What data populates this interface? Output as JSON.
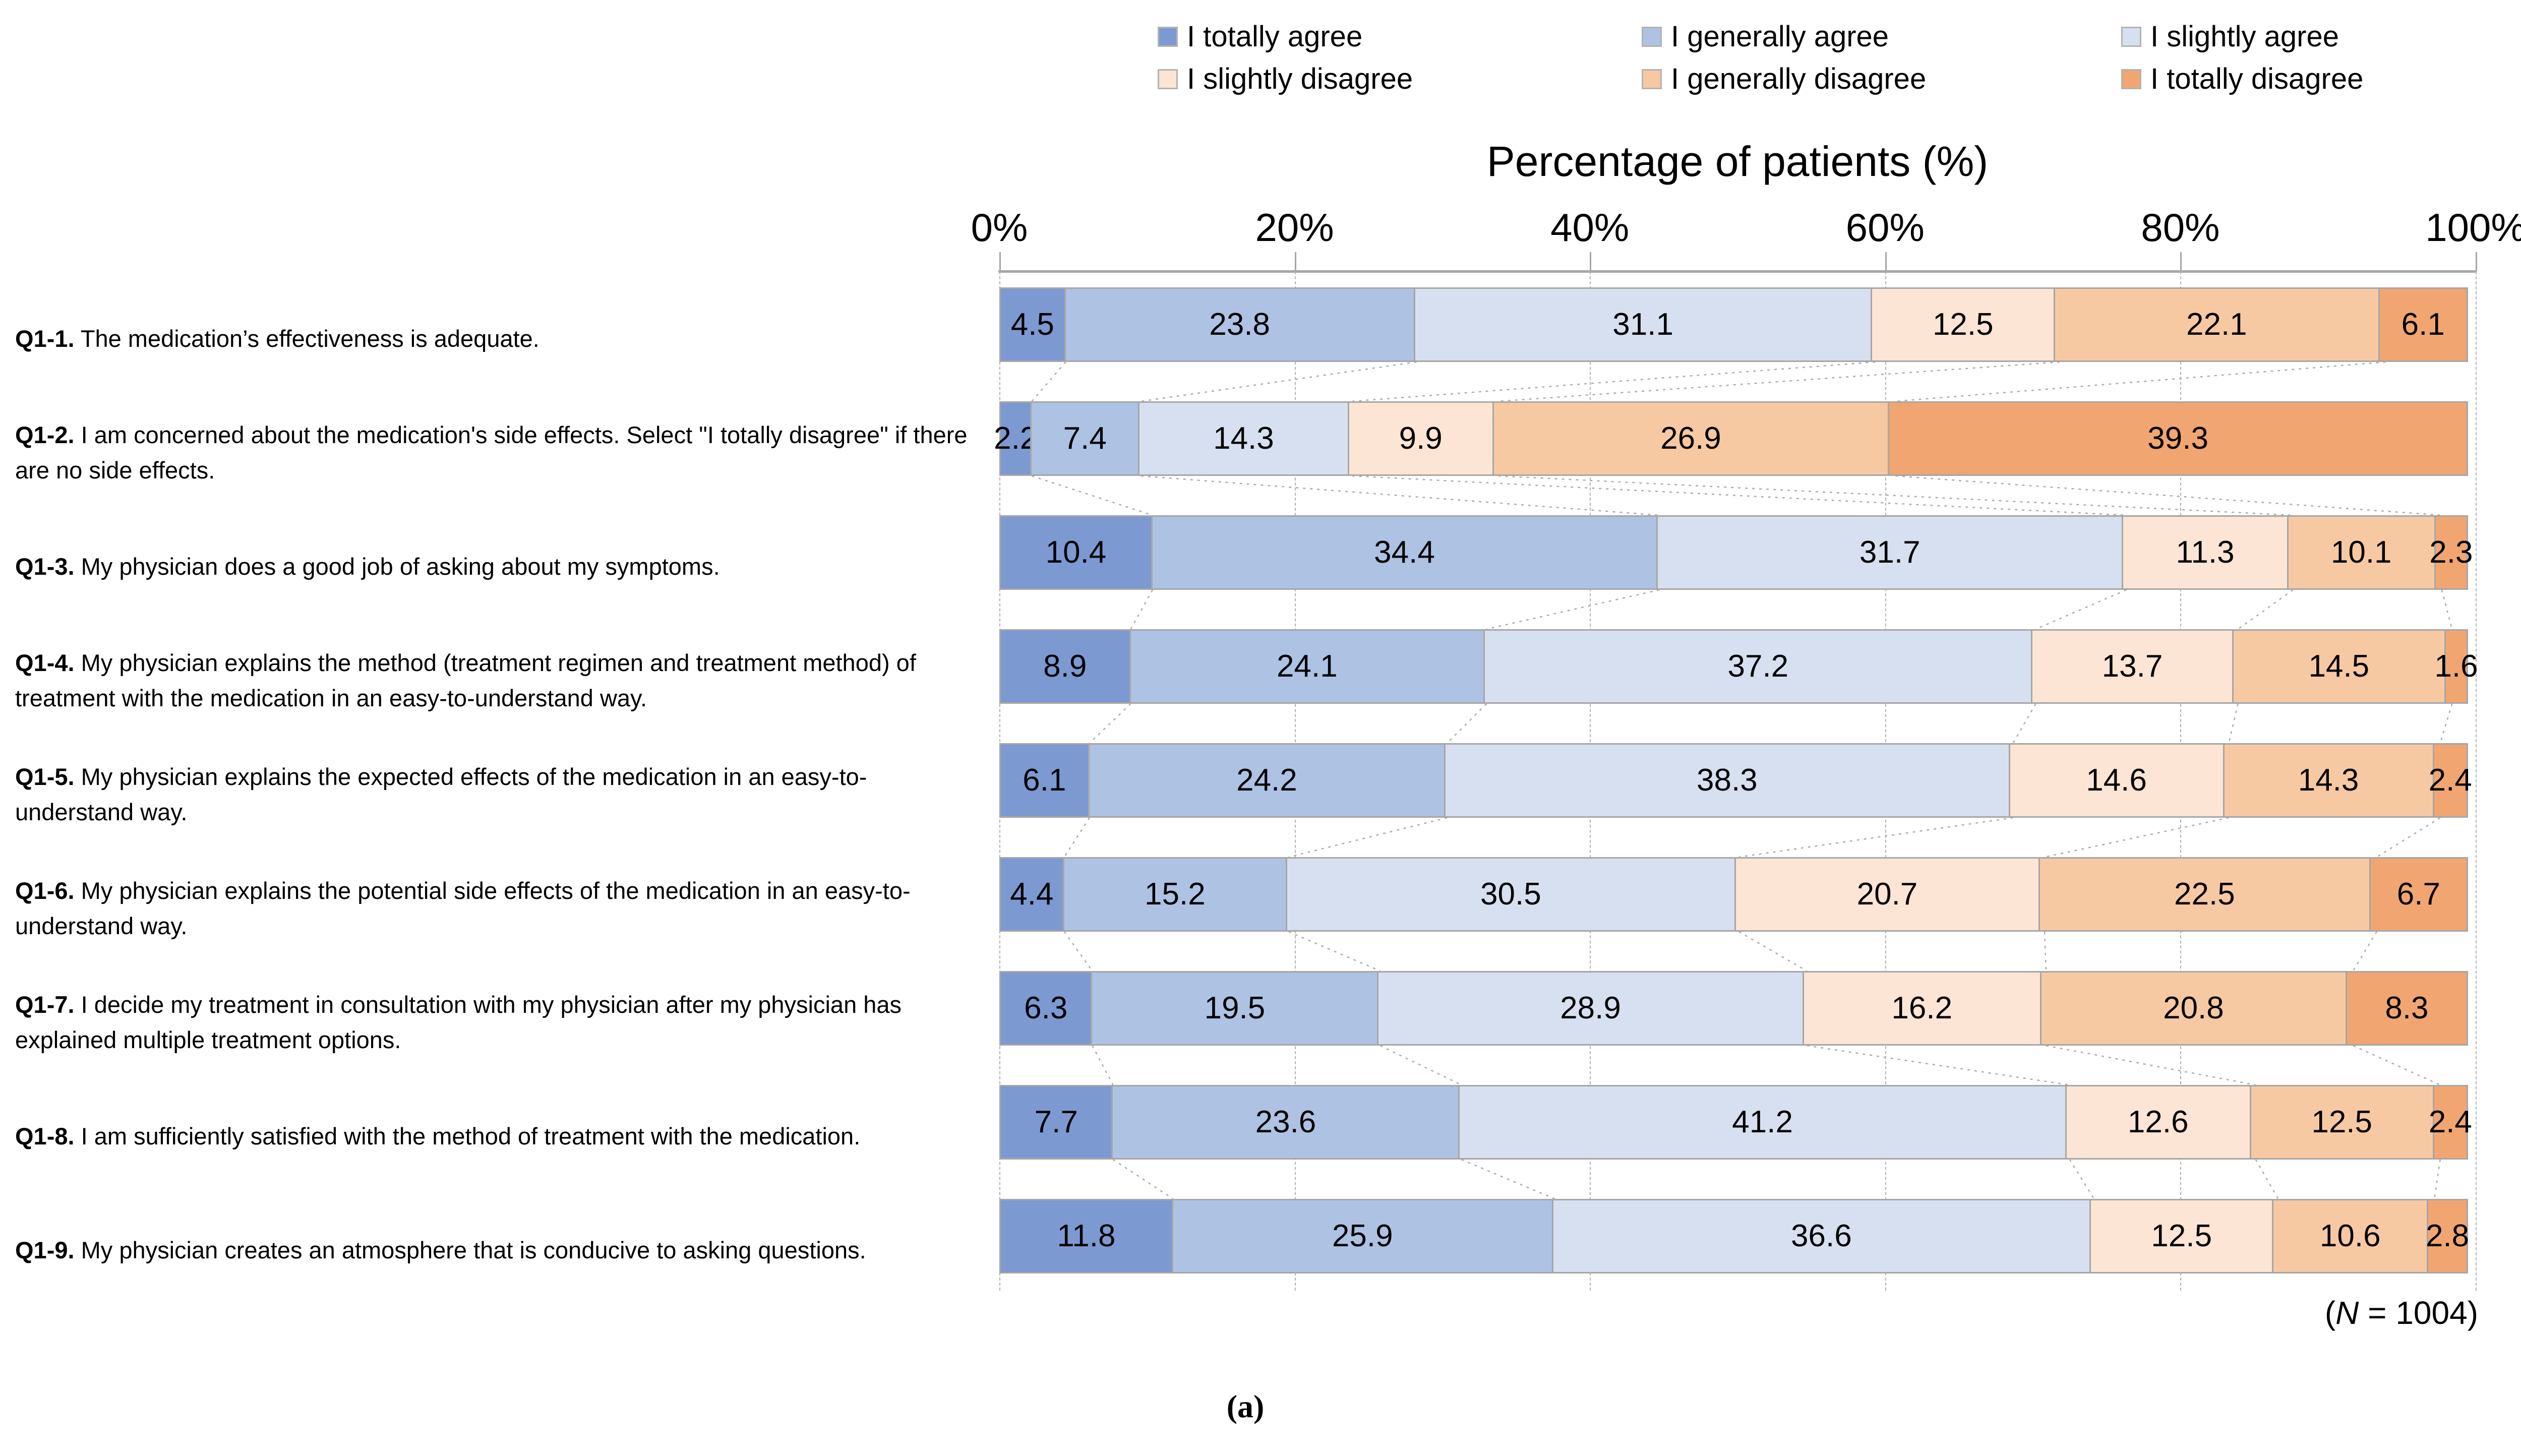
{
  "figure": {
    "panel_label": "(a)"
  },
  "note": {
    "open": "(",
    "n": "N",
    "rest": " = 1004)"
  },
  "chart_data": {
    "type": "bar",
    "orientation": "horizontal_stacked_100pct",
    "title": "",
    "xlabel": "Percentage of patients (%)",
    "ylabel": "",
    "xlim": [
      0,
      100
    ],
    "x_ticks": [
      "0%",
      "20%",
      "40%",
      "60%",
      "80%",
      "100%"
    ],
    "grid": "vertical_dashed",
    "legend_position": "top",
    "legend": [
      {
        "label": "I totally agree",
        "color": "#7d99d2"
      },
      {
        "label": "I generally agree",
        "color": "#aec2e4"
      },
      {
        "label": "I slightly agree",
        "color": "#d7e0f1"
      },
      {
        "label": "I slightly disagree",
        "color": "#fce5d4"
      },
      {
        "label": "I generally disagree",
        "color": "#f7c9a3"
      },
      {
        "label": "I totally disagree",
        "color": "#f1a672"
      }
    ],
    "categories": [
      {
        "id": "Q1-1.",
        "text": "The medication’s effectiveness is adequate."
      },
      {
        "id": "Q1-2.",
        "text": "I am concerned about the medication's side effects. Select \"I totally disagree\" if there are no side effects."
      },
      {
        "id": "Q1-3.",
        "text": "My physician does a good job of asking about my symptoms."
      },
      {
        "id": "Q1-4.",
        "text": "My physician explains the method (treatment regimen and treatment method) of treatment with the medication in an easy-to-understand way."
      },
      {
        "id": "Q1-5.",
        "text": "My physician explains the expected effects of the medication in an easy-to-understand way."
      },
      {
        "id": "Q1-6.",
        "text": "My physician explains the potential side effects of the medication in an easy-to-understand way."
      },
      {
        "id": "Q1-7.",
        "text": "I decide my treatment in consultation with my physician after my physician has explained multiple treatment options."
      },
      {
        "id": "Q1-8.",
        "text": "I am sufficiently satisfied with the method of treatment with the medication."
      },
      {
        "id": "Q1-9.",
        "text": "My physician creates an atmosphere that is conducive to asking questions."
      }
    ],
    "series": [
      {
        "name": "I totally agree",
        "color": "#7d99d2",
        "values": [
          4.5,
          2.2,
          10.4,
          8.9,
          6.1,
          4.4,
          6.3,
          7.7,
          11.8
        ]
      },
      {
        "name": "I generally agree",
        "color": "#aec2e4",
        "values": [
          23.8,
          7.4,
          34.4,
          24.1,
          24.2,
          15.2,
          19.5,
          23.6,
          25.9
        ]
      },
      {
        "name": "I slightly agree",
        "color": "#d7e0f1",
        "values": [
          31.1,
          14.3,
          31.7,
          37.2,
          38.3,
          30.5,
          28.9,
          41.2,
          36.6
        ]
      },
      {
        "name": "I slightly disagree",
        "color": "#fce5d4",
        "values": [
          12.5,
          9.9,
          11.3,
          13.7,
          14.6,
          20.7,
          16.2,
          12.6,
          12.5
        ]
      },
      {
        "name": "I generally disagree",
        "color": "#f7c9a3",
        "values": [
          22.1,
          26.9,
          10.1,
          14.5,
          14.3,
          22.5,
          20.8,
          12.5,
          10.6
        ]
      },
      {
        "name": "I totally disagree",
        "color": "#f1a672",
        "values": [
          6.1,
          39.3,
          2.3,
          1.6,
          2.4,
          6.7,
          8.3,
          2.4,
          2.8
        ]
      }
    ],
    "sample_size_note": "(N = 1004)",
    "panel_label": "(a)"
  }
}
